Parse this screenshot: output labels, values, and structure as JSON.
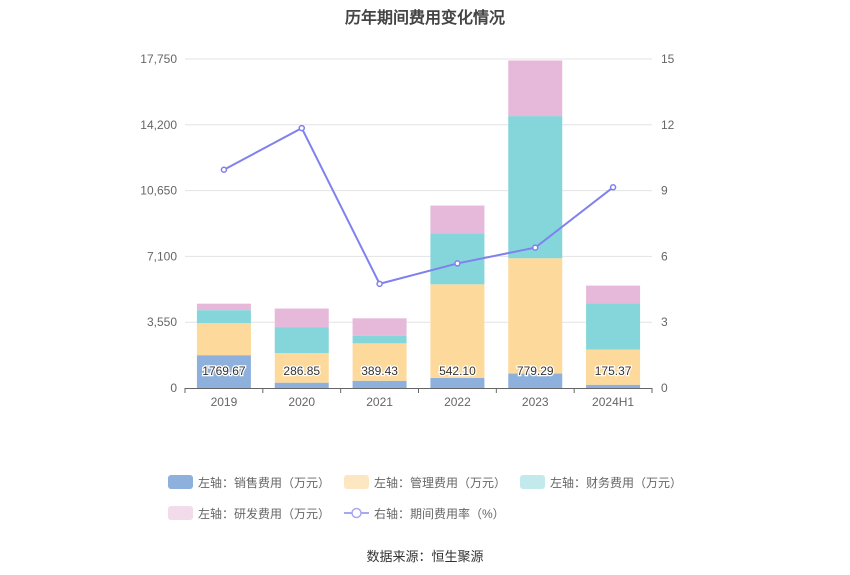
{
  "chart_data": {
    "type": "bar",
    "title": "历年期间费用变化情况",
    "categories": [
      "2019",
      "2020",
      "2021",
      "2022",
      "2023",
      "2024H1"
    ],
    "left_axis": {
      "min": 0,
      "max": 17750,
      "ticks": [
        "0",
        "3,550",
        "7,100",
        "10,650",
        "14,200",
        "17,750"
      ]
    },
    "right_axis": {
      "min": 0,
      "max": 15,
      "ticks": [
        "0",
        "3",
        "6",
        "9",
        "12",
        "15"
      ]
    },
    "stacked_series": [
      {
        "name": "左轴：销售费用（万元）",
        "color": "#8eb0dd",
        "values": [
          1769.67,
          286.85,
          389.43,
          542.1,
          779.29,
          175.37
        ],
        "labels": [
          "1769.67",
          "286.85",
          "389.43",
          "542.10",
          "779.29",
          "175.37"
        ]
      },
      {
        "name": "左轴：管理费用（万元）",
        "color": "#fdd99b",
        "values": [
          1730,
          1600,
          2020,
          5050,
          6220,
          1900
        ]
      },
      {
        "name": "左轴：财务费用（万元）",
        "color": "#85d6da",
        "values": [
          700,
          1400,
          400,
          2750,
          7670,
          2500
        ]
      },
      {
        "name": "左轴：研发费用（万元）",
        "color": "#e6b8d9",
        "values": [
          350,
          1000,
          950,
          1500,
          3000,
          950
        ]
      }
    ],
    "line_series": {
      "name": "右轴：期间费用率（%）",
      "color": "#8080ee",
      "values": [
        9.95,
        11.85,
        4.75,
        5.68,
        6.4,
        9.15
      ]
    },
    "grid": true,
    "legend_position": "bottom"
  },
  "source_note": "数据来源：恒生聚源"
}
